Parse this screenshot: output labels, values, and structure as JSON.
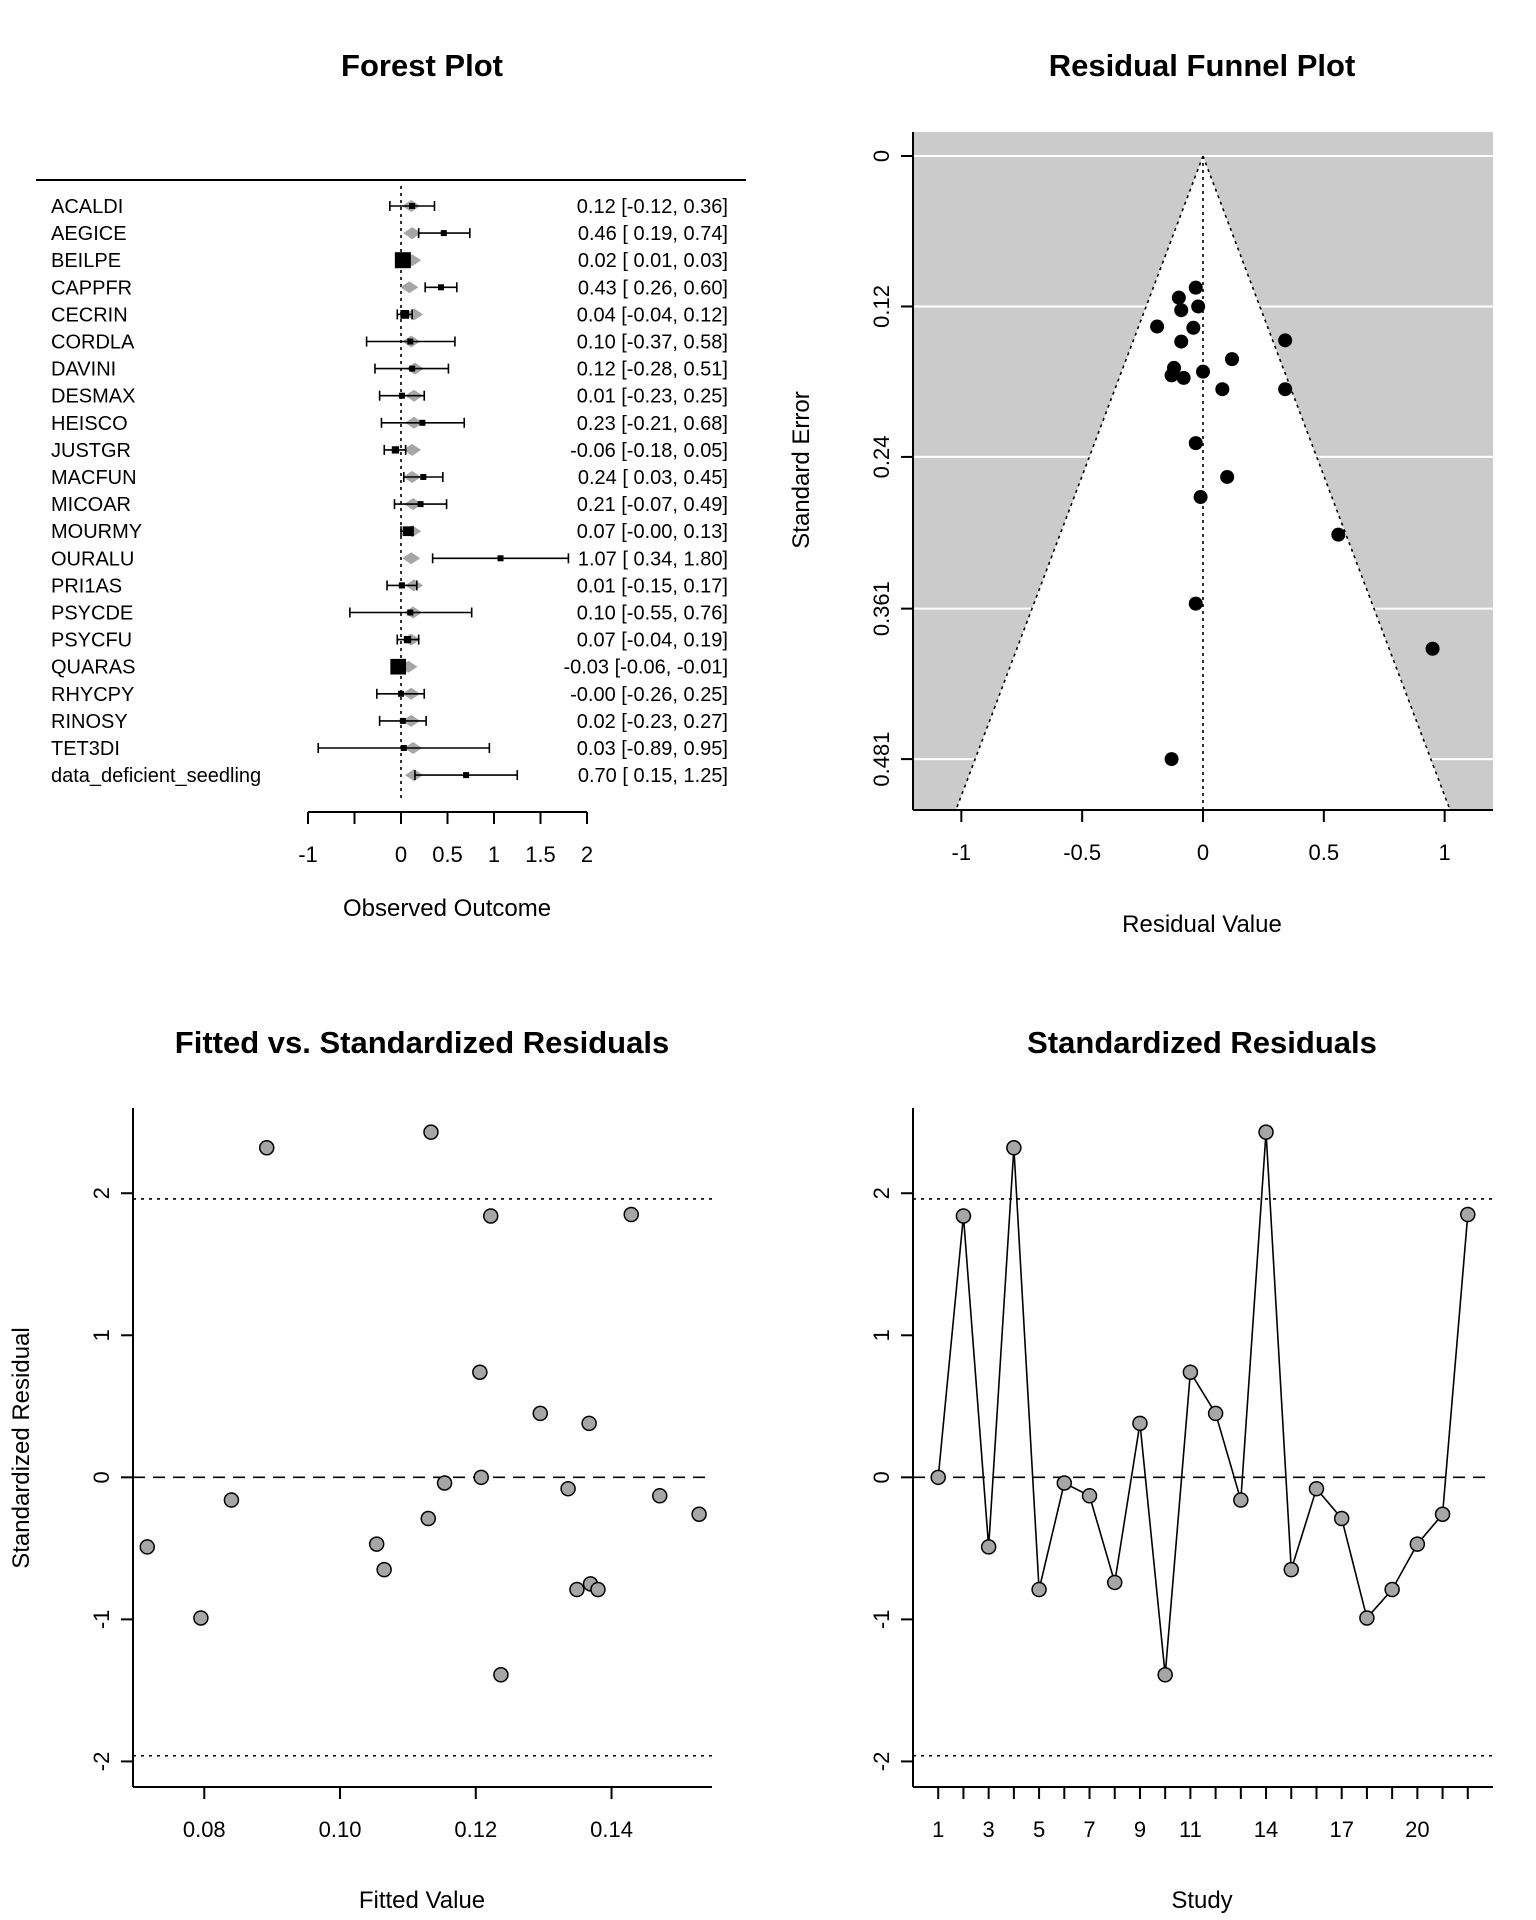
{
  "chart_data": [
    {
      "type": "forest",
      "title": "Forest Plot",
      "xlabel": "Observed Outcome",
      "x_ticks": [
        -1,
        0,
        0.5,
        1,
        1.5,
        2
      ],
      "xlim": [
        -1,
        2
      ],
      "studies": [
        {
          "label": "ACALDI",
          "est": 0.12,
          "lo": -0.12,
          "hi": 0.36,
          "fit": 0.11,
          "text": "0.12 [-0.12,  0.36]"
        },
        {
          "label": "AEGICE",
          "est": 0.46,
          "lo": 0.19,
          "hi": 0.74,
          "fit": 0.12,
          "text": "0.46 [ 0.19,  0.74]"
        },
        {
          "label": "BEILPE",
          "est": 0.02,
          "lo": 0.01,
          "hi": 0.03,
          "fit": 0.12,
          "text": "0.02 [ 0.01,  0.03]"
        },
        {
          "label": "CAPPFR",
          "est": 0.43,
          "lo": 0.26,
          "hi": 0.6,
          "fit": 0.09,
          "text": "0.43 [ 0.26,  0.60]"
        },
        {
          "label": "CECRIN",
          "est": 0.04,
          "lo": -0.04,
          "hi": 0.12,
          "fit": 0.14,
          "text": "0.04 [-0.04,  0.12]"
        },
        {
          "label": "CORDLA",
          "est": 0.1,
          "lo": -0.37,
          "hi": 0.58,
          "fit": 0.11,
          "text": "0.10 [-0.37,  0.58]"
        },
        {
          "label": "DAVINI",
          "est": 0.12,
          "lo": -0.28,
          "hi": 0.51,
          "fit": 0.15,
          "text": "0.12 [-0.28,  0.51]"
        },
        {
          "label": "DESMAX",
          "est": 0.01,
          "lo": -0.23,
          "hi": 0.25,
          "fit": 0.14,
          "text": "0.01 [-0.23,  0.25]"
        },
        {
          "label": "HEISCO",
          "est": 0.23,
          "lo": -0.21,
          "hi": 0.68,
          "fit": 0.14,
          "text": "0.23 [-0.21,  0.68]"
        },
        {
          "label": "JUSTGR",
          "est": -0.06,
          "lo": -0.18,
          "hi": 0.05,
          "fit": 0.12,
          "text": "-0.06 [-0.18,  0.05]"
        },
        {
          "label": "MACFUN",
          "est": 0.24,
          "lo": 0.03,
          "hi": 0.45,
          "fit": 0.12,
          "text": "0.24 [ 0.03,  0.45]"
        },
        {
          "label": "MICOAR",
          "est": 0.21,
          "lo": -0.07,
          "hi": 0.49,
          "fit": 0.13,
          "text": "0.21 [-0.07,  0.49]"
        },
        {
          "label": "MOURMY",
          "est": 0.07,
          "lo": -0.0,
          "hi": 0.13,
          "fit": 0.12,
          "text": "0.07 [-0.00,  0.13]"
        },
        {
          "label": "OURALU",
          "est": 1.07,
          "lo": 0.34,
          "hi": 1.8,
          "fit": 0.11,
          "text": "1.07 [ 0.34,  1.80]"
        },
        {
          "label": "PRI1AS",
          "est": 0.01,
          "lo": -0.15,
          "hi": 0.17,
          "fit": 0.14,
          "text": "0.01 [-0.15,  0.17]"
        },
        {
          "label": "PSYCDE",
          "est": 0.1,
          "lo": -0.55,
          "hi": 0.76,
          "fit": 0.13,
          "text": "0.10 [-0.55,  0.76]"
        },
        {
          "label": "PSYCFU",
          "est": 0.07,
          "lo": -0.04,
          "hi": 0.19,
          "fit": 0.11,
          "text": "0.07 [-0.04,  0.19]"
        },
        {
          "label": "QUARAS",
          "est": -0.03,
          "lo": -0.06,
          "hi": -0.01,
          "fit": 0.08,
          "text": "-0.03 [-0.06, -0.01]"
        },
        {
          "label": "RHYCPY",
          "est": -0.0,
          "lo": -0.26,
          "hi": 0.25,
          "fit": 0.11,
          "text": "-0.00 [-0.26,  0.25]"
        },
        {
          "label": "RINOSY",
          "est": 0.02,
          "lo": -0.23,
          "hi": 0.27,
          "fit": 0.11,
          "text": "0.02 [-0.23,  0.27]"
        },
        {
          "label": "TET3DI",
          "est": 0.03,
          "lo": -0.89,
          "hi": 0.95,
          "fit": 0.13,
          "text": "0.03 [-0.89,  0.95]"
        },
        {
          "label": "data_deficient_seedling",
          "est": 0.7,
          "lo": 0.15,
          "hi": 1.25,
          "fit": 0.14,
          "text": "0.70 [ 0.15,  1.25]"
        }
      ]
    },
    {
      "type": "scatter",
      "title": "Residual Funnel Plot",
      "xlabel": "Residual Value",
      "ylabel": "Standard Error",
      "xlim": [
        -1.2,
        1.2
      ],
      "ylim": [
        0,
        0.5216
      ],
      "x_ticks": [
        -1,
        -0.5,
        0,
        0.5,
        1
      ],
      "y_ticks": [
        0,
        0.12,
        0.24,
        0.361,
        0.481
      ],
      "y_tick_labels": [
        "0",
        "0.12",
        "0.24",
        "0.361",
        "0.481"
      ],
      "points": [
        {
          "x": -0.03,
          "y": 0.105
        },
        {
          "x": -0.1,
          "y": 0.113
        },
        {
          "x": -0.02,
          "y": 0.12
        },
        {
          "x": -0.09,
          "y": 0.123
        },
        {
          "x": -0.19,
          "y": 0.136
        },
        {
          "x": -0.04,
          "y": 0.137
        },
        {
          "x": -0.09,
          "y": 0.148
        },
        {
          "x": 0.34,
          "y": 0.147
        },
        {
          "x": 0.12,
          "y": 0.162
        },
        {
          "x": -0.12,
          "y": 0.169
        },
        {
          "x": -0.13,
          "y": 0.175
        },
        {
          "x": 0.0,
          "y": 0.172
        },
        {
          "x": -0.08,
          "y": 0.177
        },
        {
          "x": 0.08,
          "y": 0.186
        },
        {
          "x": 0.34,
          "y": 0.186
        },
        {
          "x": -0.03,
          "y": 0.229
        },
        {
          "x": 0.1,
          "y": 0.256
        },
        {
          "x": -0.01,
          "y": 0.272
        },
        {
          "x": 0.56,
          "y": 0.302
        },
        {
          "x": -0.03,
          "y": 0.357
        },
        {
          "x": 0.95,
          "y": 0.393
        },
        {
          "x": -0.13,
          "y": 0.481
        }
      ]
    },
    {
      "type": "scatter",
      "title": "Fitted vs. Standardized Residuals",
      "xlabel": "Fitted Value",
      "ylabel": "Standardized Residual",
      "xlim": [
        0.0695,
        0.1548
      ],
      "ylim": [
        -2.18,
        2.6
      ],
      "x_ticks": [
        0.08,
        0.1,
        0.12,
        0.14
      ],
      "x_tick_labels": [
        "0.08",
        "0.10",
        "0.12",
        "0.14"
      ],
      "y_ticks": [
        -2,
        -1,
        0,
        1,
        2
      ],
      "ref_lines": [
        -1.96,
        0,
        1.96
      ],
      "points": [
        {
          "x": 0.0716,
          "y": -0.49
        },
        {
          "x": 0.0795,
          "y": -0.99
        },
        {
          "x": 0.084,
          "y": -0.16
        },
        {
          "x": 0.0892,
          "y": 2.32
        },
        {
          "x": 0.1054,
          "y": -0.47
        },
        {
          "x": 0.1065,
          "y": -0.65
        },
        {
          "x": 0.113,
          "y": -0.29
        },
        {
          "x": 0.1134,
          "y": 2.43
        },
        {
          "x": 0.1154,
          "y": -0.04
        },
        {
          "x": 0.1206,
          "y": 0.74
        },
        {
          "x": 0.1208,
          "y": 0.0
        },
        {
          "x": 0.1222,
          "y": 1.84
        },
        {
          "x": 0.1237,
          "y": -1.39
        },
        {
          "x": 0.1295,
          "y": 0.45
        },
        {
          "x": 0.1336,
          "y": -0.08
        },
        {
          "x": 0.1349,
          "y": -0.79
        },
        {
          "x": 0.1367,
          "y": 0.38
        },
        {
          "x": 0.1369,
          "y": -0.75
        },
        {
          "x": 0.138,
          "y": -0.79
        },
        {
          "x": 0.1429,
          "y": 1.85
        },
        {
          "x": 0.1471,
          "y": -0.13
        },
        {
          "x": 0.1529,
          "y": -0.26
        }
      ]
    },
    {
      "type": "line",
      "title": "Standardized Residuals",
      "xlabel": "Study",
      "ylabel": "",
      "xlim": [
        0,
        23
      ],
      "ylim": [
        -2.18,
        2.6
      ],
      "x_ticks": [
        1,
        3,
        5,
        7,
        9,
        11,
        14,
        17,
        20
      ],
      "y_ticks": [
        -2,
        -1,
        0,
        1,
        2
      ],
      "ref_lines": [
        -1.96,
        0,
        1.96
      ],
      "x": [
        1,
        2,
        3,
        4,
        5,
        6,
        7,
        8,
        9,
        10,
        11,
        12,
        13,
        14,
        15,
        16,
        17,
        18,
        19,
        20,
        21,
        22
      ],
      "values": [
        0.0,
        1.84,
        -0.49,
        2.32,
        -0.79,
        -0.04,
        -0.13,
        -0.74,
        0.38,
        -1.39,
        0.74,
        0.45,
        -0.16,
        2.43,
        -0.65,
        -0.08,
        -0.29,
        -0.99,
        -0.79,
        -0.47,
        -0.26,
        1.85
      ]
    }
  ]
}
